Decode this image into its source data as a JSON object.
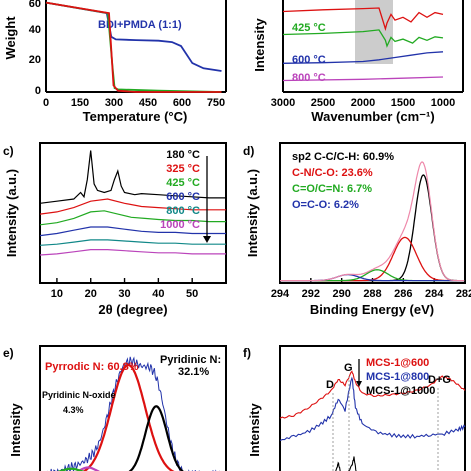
{
  "chart_data": [
    {
      "type": "line",
      "ylabel": "Weight",
      "xlabel": "Temperature (°C)",
      "xlim": [
        0,
        800
      ],
      "ylim": [
        0,
        70
      ],
      "x_ticks": [
        "0",
        "150",
        "300",
        "450",
        "600",
        "750"
      ],
      "y_ticks": [
        "0",
        "20",
        "40",
        "60"
      ],
      "annotations": [
        "BDI+PMDA (1:1)"
      ],
      "series": [
        {
          "color": "#2233aa",
          "x": [
            0,
            270,
            290,
            310,
            400,
            500,
            560,
            600,
            650,
            700,
            780
          ],
          "y": [
            68,
            60,
            42,
            40,
            39.5,
            39,
            38,
            35,
            22,
            18,
            16
          ]
        },
        {
          "color": "#22aa22",
          "x": [
            0,
            275,
            295,
            305,
            320,
            500,
            780
          ],
          "y": [
            68,
            60,
            20,
            3,
            2,
            1,
            0
          ]
        },
        {
          "color": "#dd1111",
          "x": [
            0,
            280,
            300,
            320,
            400,
            780
          ],
          "y": [
            68,
            60,
            5,
            1,
            0,
            0
          ]
        }
      ]
    },
    {
      "type": "line",
      "ylabel": "Intensity",
      "xlabel": "Wavenumber (cm⁻¹)",
      "xlim": [
        3000,
        1000
      ],
      "x_ticks": [
        "3000",
        "2500",
        "2000",
        "1500",
        "1000"
      ],
      "series": [
        {
          "name": "425 °C",
          "color": "#22aa22",
          "x": [
            3000,
            2500,
            2000,
            1800,
            1720,
            1700,
            1650,
            1600,
            1500,
            1380,
            1300,
            1200,
            1100,
            1000
          ],
          "y": [
            10,
            10.2,
            10.5,
            10.8,
            9,
            8,
            9.5,
            8.8,
            9.2,
            8.5,
            9.5,
            9,
            9.6,
            9.4
          ]
        },
        {
          "name": "600 °C",
          "color": "#2233aa",
          "x": [
            3000,
            2500,
            2000,
            1800,
            1600,
            1400,
            1200,
            1000
          ],
          "y": [
            5,
            5.1,
            5.3,
            5.6,
            6.0,
            6.4,
            6.8,
            7.0
          ]
        },
        {
          "name": "800 °C",
          "color": "#bb44bb",
          "x": [
            3000,
            2000,
            1500,
            1000
          ],
          "y": [
            2,
            2.2,
            2.4,
            2.6
          ]
        },
        {
          "name": "",
          "color": "#dd1111",
          "x": [
            3000,
            2500,
            2000,
            1800,
            1720,
            1700,
            1650,
            1600,
            1500,
            1400,
            1300,
            1200,
            1100,
            1000
          ],
          "y": [
            14,
            14.3,
            14.5,
            14.6,
            11,
            12,
            13.5,
            12.5,
            13,
            12.2,
            13.8,
            13,
            13.8,
            13.5
          ]
        }
      ]
    },
    {
      "type": "line",
      "panel": "c)",
      "ylabel": "Intensity (a.u.)",
      "xlabel": "2θ (degree)",
      "xlim": [
        5,
        60
      ],
      "x_ticks": [
        "10",
        "20",
        "30",
        "40",
        "50"
      ],
      "series": [
        {
          "name": "180 °C",
          "color": "#000000",
          "x": [
            5,
            10,
            15,
            17,
            18,
            19,
            20,
            21,
            22,
            24,
            26,
            27,
            28,
            29,
            30,
            33,
            35,
            40,
            45,
            50,
            55,
            60
          ],
          "y": [
            7.4,
            7.6,
            7.8,
            8.4,
            8.0,
            9.6,
            12.3,
            9.2,
            8.6,
            8.4,
            8.6,
            9.6,
            10.4,
            9.0,
            8.4,
            8.2,
            8.3,
            8.2,
            8.1,
            8.0,
            7.9,
            7.9
          ]
        },
        {
          "name": "325 °C",
          "color": "#dd1111",
          "x": [
            5,
            10,
            15,
            20,
            25,
            30,
            35,
            40,
            45,
            50,
            55,
            60
          ],
          "y": [
            6.4,
            6.6,
            7.0,
            7.6,
            7.8,
            7.4,
            7.1,
            7.0,
            6.9,
            6.8,
            6.8,
            6.8
          ]
        },
        {
          "name": "425 °C",
          "color": "#22aa22",
          "x": [
            5,
            10,
            15,
            20,
            24,
            28,
            32,
            36,
            40,
            45,
            50,
            55,
            60
          ],
          "y": [
            5.4,
            5.6,
            6.0,
            6.6,
            6.7,
            6.4,
            6.1,
            6.0,
            5.9,
            5.8,
            5.8,
            5.7,
            5.7
          ]
        },
        {
          "name": "600 °C",
          "color": "#2233aa",
          "x": [
            5,
            10,
            15,
            20,
            25,
            30,
            35,
            40,
            45,
            50,
            55,
            60
          ],
          "y": [
            4.4,
            4.6,
            4.9,
            5.2,
            5.2,
            5.0,
            4.8,
            4.7,
            4.7,
            4.6,
            4.6,
            4.6
          ]
        },
        {
          "name": "800 °C",
          "color": "#118888",
          "x": [
            5,
            10,
            15,
            20,
            25,
            30,
            35,
            40,
            45,
            50,
            55,
            60
          ],
          "y": [
            3.5,
            3.6,
            3.8,
            4.0,
            4.0,
            3.9,
            3.8,
            3.7,
            3.7,
            3.6,
            3.6,
            3.6
          ]
        },
        {
          "name": "1000 °C",
          "color": "#bb44bb",
          "x": [
            5,
            10,
            15,
            20,
            25,
            30,
            35,
            40,
            45,
            50,
            55,
            60
          ],
          "y": [
            2.6,
            2.7,
            2.9,
            3.1,
            3.1,
            3.0,
            2.9,
            2.8,
            2.8,
            2.7,
            2.7,
            2.7
          ]
        }
      ]
    },
    {
      "type": "line",
      "panel": "d)",
      "ylabel": "Intensity (a.u.)",
      "xlabel": "Binding Energy (eV)",
      "xlim": [
        294,
        282
      ],
      "x_ticks": [
        "294",
        "292",
        "290",
        "288",
        "286",
        "284",
        "282"
      ],
      "legend": [
        "sp2 C-C/C-H: 60.9%",
        "C-N/C-O: 23.6%",
        "C=O/C=N: 6.7%",
        "O=C-O: 6.2%"
      ],
      "legend_colors": [
        "#000000",
        "#dd1111",
        "#22aa22",
        "#2233aa"
      ],
      "peaks": [
        {
          "center": 284.7,
          "height": 88,
          "width": 0.55,
          "color": "#000000"
        },
        {
          "center": 285.9,
          "height": 36,
          "width": 0.75,
          "color": "#dd1111"
        },
        {
          "center": 287.7,
          "height": 9,
          "width": 0.7,
          "color": "#22aa22"
        },
        {
          "center": 289.6,
          "height": 5,
          "width": 0.7,
          "color": "#2233aa"
        }
      ],
      "baseline": 2,
      "envelope_color": "#ee88aa"
    },
    {
      "type": "line",
      "panel": "e)",
      "ylabel": "Intensity",
      "annotations": [
        "Pyrrodic N: 60.8%",
        "Pyridinic N:",
        "32.1%",
        "Pyridinic N-oxide",
        "4.3%"
      ],
      "annotation_colors": [
        "#dd1111",
        "#000000",
        "#000000",
        "#000000",
        "#000000"
      ],
      "xlim": [
        406,
        394
      ],
      "peaks": [
        {
          "center": 400.3,
          "height": 88,
          "width": 1.1,
          "color": "#dd1111"
        },
        {
          "center": 398.5,
          "height": 55,
          "width": 0.7,
          "color": "#000000"
        },
        {
          "center": 402.9,
          "height": 6,
          "width": 0.55,
          "color": "#bb44bb"
        },
        {
          "center": 404.0,
          "height": 5,
          "width": 0.7,
          "color": "#22aa22"
        }
      ],
      "data_color": "#2233aa"
    },
    {
      "type": "line",
      "panel": "f)",
      "ylabel": "Intensity",
      "annotations": [
        "D",
        "G",
        "D+G"
      ],
      "legend": [
        "MCS-1@600",
        "MCS-1@800",
        "MCS-1@1000"
      ],
      "legend_colors": [
        "#dd1111",
        "#2233aa",
        "#000000"
      ],
      "xlim": [
        500,
        3200
      ],
      "series": [
        {
          "name": "MCS-1@600",
          "color": "#dd1111",
          "x": [
            500,
            700,
            900,
            1100,
            1250,
            1350,
            1450,
            1550,
            1600,
            1700,
            1900,
            2100,
            2300,
            2500,
            2700,
            2850,
            2950,
            3050,
            3200
          ],
          "y": [
            48,
            50,
            55,
            62,
            68,
            76,
            72,
            82,
            74,
            66,
            64,
            65,
            66,
            68,
            72,
            78,
            77,
            74,
            68
          ]
        },
        {
          "name": "MCS-1@800",
          "color": "#2233aa",
          "x": [
            500,
            700,
            900,
            1100,
            1250,
            1350,
            1450,
            1550,
            1600,
            1700,
            1900,
            2100,
            2300,
            2500,
            2700,
            2900,
            3100,
            3200
          ],
          "y": [
            32,
            35,
            38,
            44,
            50,
            62,
            54,
            78,
            56,
            44,
            38,
            36,
            35,
            35,
            36,
            37,
            40,
            42
          ]
        },
        {
          "name": "MCS-1@1000",
          "color": "#000000",
          "x": [
            500,
            800,
            1100,
            1250,
            1330,
            1350,
            1380,
            1450,
            1550,
            1580,
            1610,
            1700,
            2000,
            2400,
            2800,
            3200
          ],
          "y": [
            2,
            2,
            2.5,
            4,
            12,
            16,
            10,
            6,
            14,
            20,
            10,
            4,
            3,
            3,
            3,
            3
          ]
        }
      ]
    }
  ]
}
